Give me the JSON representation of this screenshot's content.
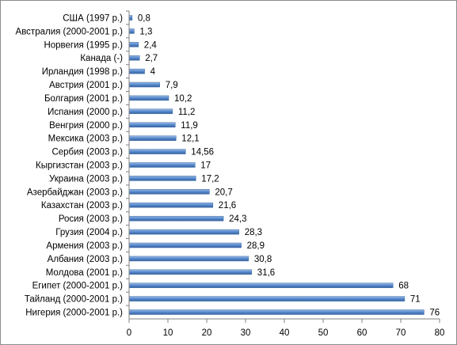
{
  "chart_data": {
    "type": "bar",
    "orientation": "horizontal",
    "categories": [
      "США (1997 р.)",
      "Австралия (2000-2001 р.)",
      "Норвегия (1995 р.)",
      "Канада (-)",
      "Ирландия (1998 р.)",
      "Австрия (2001 р.)",
      "Болгария (2001 р.)",
      "Испания (2000 р.)",
      "Венгрия (2000 р.)",
      "Мексика (2003 р.)",
      "Сербия (2003 р.)",
      "Кыргизстан (2003 р.)",
      "Украина (2003 р.)",
      "Азербайджан (2003 р.)",
      "Казахстан (2003 р.)",
      "Росия (2003 р.)",
      "Грузия (2004 р.)",
      "Армения (2003 р.)",
      "Албания (2003 р.)",
      "Молдова (2001 р.)",
      "Египет (2000-2001 р.)",
      "Тайланд (2000-2001 р.)",
      "Нигерия (2000-2001 р.)"
    ],
    "values": [
      0.8,
      1.3,
      2.4,
      2.7,
      4,
      7.9,
      10.2,
      11.2,
      11.9,
      12.1,
      14.56,
      17,
      17.2,
      20.7,
      21.6,
      24.3,
      28.3,
      28.9,
      30.8,
      31.6,
      68,
      71,
      76
    ],
    "value_labels": [
      "0,8",
      "1,3",
      "2,4",
      "2,7",
      "4",
      "7,9",
      "10,2",
      "11,2",
      "11,9",
      "12,1",
      "14,56",
      "17",
      "17,2",
      "20,7",
      "21,6",
      "24,3",
      "28,3",
      "28,9",
      "30,8",
      "31,6",
      "68",
      "71",
      "76"
    ],
    "x_ticks": [
      "0",
      "10",
      "20",
      "30",
      "40",
      "50",
      "60",
      "70",
      "80"
    ],
    "xlim": [
      0,
      80
    ],
    "grid": false,
    "legend": "none",
    "bar_color": "#4a7ebb",
    "title": "",
    "xlabel": "",
    "ylabel": ""
  }
}
